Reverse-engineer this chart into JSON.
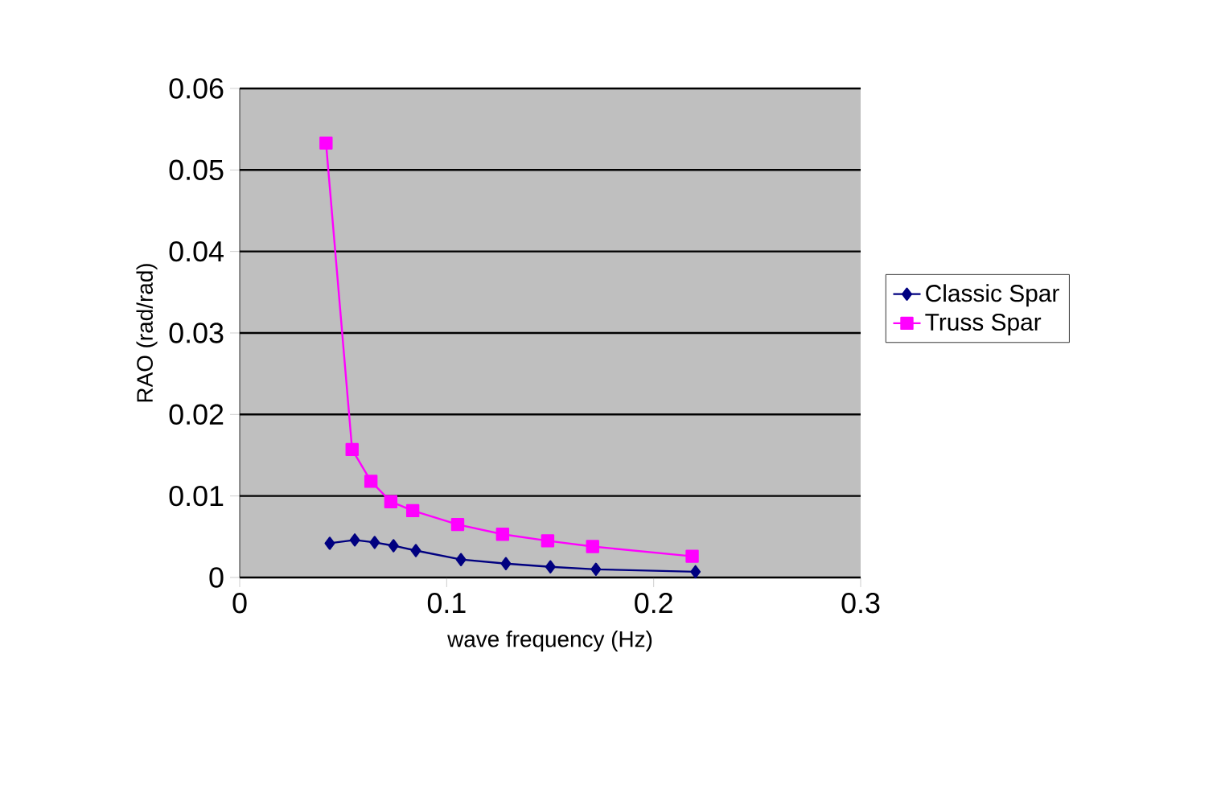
{
  "chart_data": {
    "type": "line",
    "xlabel": "wave frequency (Hz)",
    "ylabel": "RAO (rad/rad)",
    "xlim": [
      0,
      0.3
    ],
    "xticks": [
      0,
      0.1,
      0.2,
      0.3
    ],
    "ylim": [
      0,
      0.06
    ],
    "yticks": [
      0,
      0.01,
      0.02,
      0.03,
      0.04,
      0.05,
      0.06
    ],
    "grid": "y",
    "legend": "right",
    "line_style": "solid",
    "series": [
      {
        "name": "Classic Spar",
        "color": "#000080",
        "marker": "diamond",
        "x": [
          0.0435,
          0.0556,
          0.0652,
          0.0743,
          0.0851,
          0.1069,
          0.1286,
          0.1501,
          0.1721,
          0.2202
        ],
        "values": [
          0.0042,
          0.0046,
          0.0043,
          0.0039,
          0.0033,
          0.0022,
          0.0017,
          0.0013,
          0.001,
          0.0007
        ]
      },
      {
        "name": "Truss Spar",
        "color": "#ff00ff",
        "marker": "square",
        "x": [
          0.0417,
          0.0543,
          0.0634,
          0.073,
          0.0836,
          0.1053,
          0.127,
          0.1488,
          0.1705,
          0.2186
        ],
        "values": [
          0.0533,
          0.0157,
          0.0118,
          0.0093,
          0.0082,
          0.0065,
          0.0053,
          0.0045,
          0.0038,
          0.0026
        ]
      }
    ]
  }
}
